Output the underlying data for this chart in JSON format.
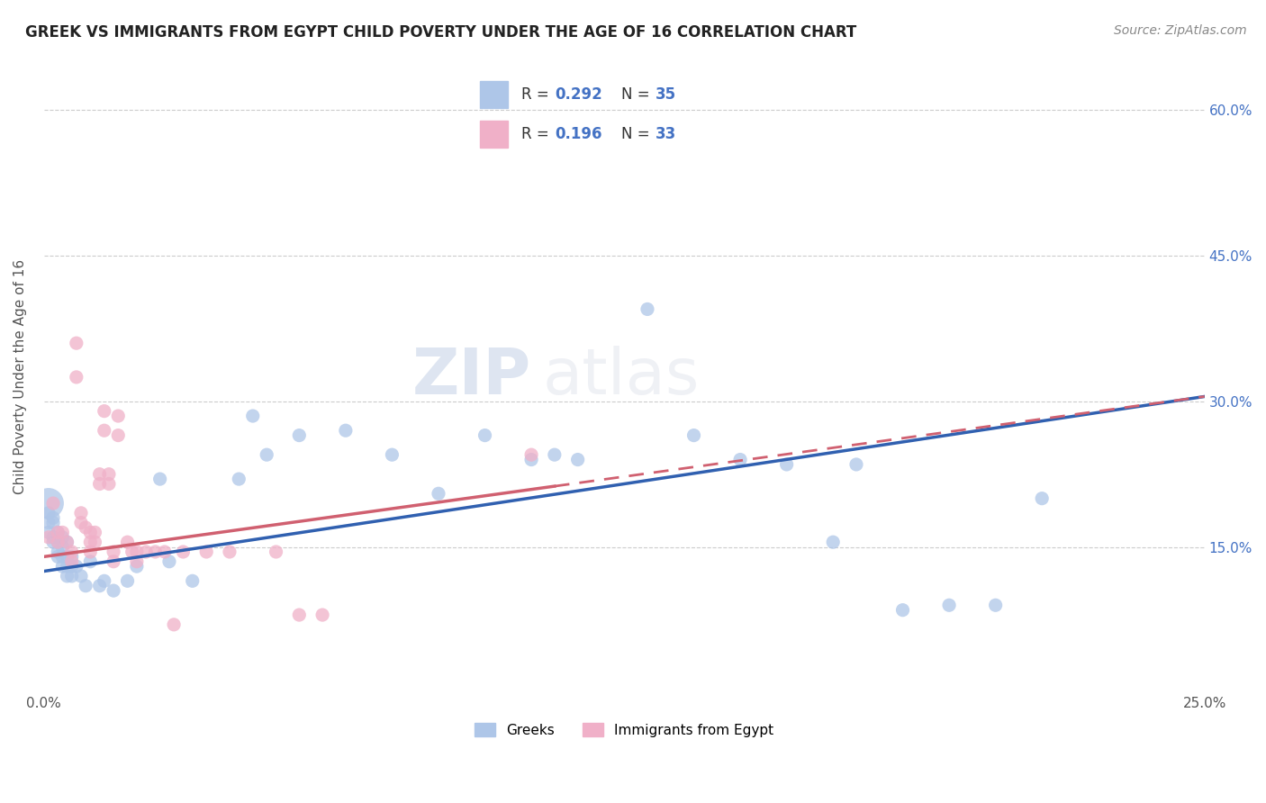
{
  "title": "GREEK VS IMMIGRANTS FROM EGYPT CHILD POVERTY UNDER THE AGE OF 16 CORRELATION CHART",
  "source": "Source: ZipAtlas.com",
  "ylabel": "Child Poverty Under the Age of 16",
  "xlim": [
    0.0,
    0.25
  ],
  "ylim": [
    0.0,
    0.65
  ],
  "x_ticks": [
    0.0,
    0.05,
    0.1,
    0.15,
    0.2,
    0.25
  ],
  "x_tick_labels": [
    "0.0%",
    "",
    "",
    "",
    "",
    "25.0%"
  ],
  "y_ticks": [
    0.0,
    0.15,
    0.3,
    0.45,
    0.6
  ],
  "y_tick_labels": [
    "",
    "15.0%",
    "30.0%",
    "45.0%",
    "60.0%"
  ],
  "legend_label1": "Greeks",
  "legend_label2": "Immigrants from Egypt",
  "greek_color": "#aec6e8",
  "egypt_color": "#f0b0c8",
  "greek_line_color": "#3060b0",
  "egypt_line_color": "#d06070",
  "background_color": "#ffffff",
  "watermark1": "ZIP",
  "watermark2": "atlas",
  "greek_points": [
    [
      0.001,
      0.195
    ],
    [
      0.001,
      0.185
    ],
    [
      0.001,
      0.175
    ],
    [
      0.001,
      0.165
    ],
    [
      0.002,
      0.18
    ],
    [
      0.002,
      0.175
    ],
    [
      0.002,
      0.16
    ],
    [
      0.002,
      0.155
    ],
    [
      0.003,
      0.165
    ],
    [
      0.003,
      0.155
    ],
    [
      0.003,
      0.145
    ],
    [
      0.003,
      0.14
    ],
    [
      0.004,
      0.16
    ],
    [
      0.004,
      0.15
    ],
    [
      0.004,
      0.14
    ],
    [
      0.004,
      0.13
    ],
    [
      0.005,
      0.155
    ],
    [
      0.005,
      0.14
    ],
    [
      0.005,
      0.13
    ],
    [
      0.005,
      0.12
    ],
    [
      0.006,
      0.14
    ],
    [
      0.006,
      0.13
    ],
    [
      0.006,
      0.12
    ],
    [
      0.007,
      0.13
    ],
    [
      0.008,
      0.12
    ],
    [
      0.009,
      0.11
    ],
    [
      0.01,
      0.135
    ],
    [
      0.012,
      0.11
    ],
    [
      0.013,
      0.115
    ],
    [
      0.015,
      0.105
    ],
    [
      0.018,
      0.115
    ],
    [
      0.02,
      0.13
    ],
    [
      0.025,
      0.22
    ],
    [
      0.027,
      0.135
    ],
    [
      0.032,
      0.115
    ],
    [
      0.042,
      0.22
    ],
    [
      0.045,
      0.285
    ],
    [
      0.048,
      0.245
    ],
    [
      0.055,
      0.265
    ],
    [
      0.065,
      0.27
    ],
    [
      0.075,
      0.245
    ],
    [
      0.085,
      0.205
    ],
    [
      0.095,
      0.265
    ],
    [
      0.105,
      0.24
    ],
    [
      0.11,
      0.245
    ],
    [
      0.115,
      0.24
    ],
    [
      0.13,
      0.395
    ],
    [
      0.14,
      0.265
    ],
    [
      0.15,
      0.24
    ],
    [
      0.16,
      0.235
    ],
    [
      0.17,
      0.155
    ],
    [
      0.175,
      0.235
    ],
    [
      0.185,
      0.085
    ],
    [
      0.195,
      0.09
    ],
    [
      0.205,
      0.09
    ],
    [
      0.215,
      0.2
    ]
  ],
  "greek_sizes": [
    600,
    120,
    120,
    120,
    120,
    120,
    120,
    120,
    120,
    120,
    120,
    120,
    120,
    120,
    120,
    120,
    120,
    120,
    120,
    120,
    120,
    120,
    120,
    120,
    120,
    120,
    120,
    120,
    120,
    120,
    120,
    120,
    120,
    120,
    120,
    120,
    120,
    120,
    120,
    120,
    120,
    120,
    120,
    120,
    120,
    120,
    120,
    120,
    120,
    120,
    120,
    120,
    120,
    120,
    120,
    120
  ],
  "egypt_points": [
    [
      0.001,
      0.16
    ],
    [
      0.002,
      0.195
    ],
    [
      0.003,
      0.165
    ],
    [
      0.003,
      0.155
    ],
    [
      0.004,
      0.165
    ],
    [
      0.005,
      0.155
    ],
    [
      0.006,
      0.145
    ],
    [
      0.006,
      0.135
    ],
    [
      0.007,
      0.36
    ],
    [
      0.007,
      0.325
    ],
    [
      0.008,
      0.185
    ],
    [
      0.008,
      0.175
    ],
    [
      0.009,
      0.17
    ],
    [
      0.01,
      0.165
    ],
    [
      0.01,
      0.155
    ],
    [
      0.01,
      0.145
    ],
    [
      0.011,
      0.165
    ],
    [
      0.011,
      0.155
    ],
    [
      0.012,
      0.225
    ],
    [
      0.012,
      0.215
    ],
    [
      0.013,
      0.29
    ],
    [
      0.013,
      0.27
    ],
    [
      0.014,
      0.225
    ],
    [
      0.014,
      0.215
    ],
    [
      0.015,
      0.145
    ],
    [
      0.015,
      0.135
    ],
    [
      0.016,
      0.285
    ],
    [
      0.016,
      0.265
    ],
    [
      0.018,
      0.155
    ],
    [
      0.019,
      0.145
    ],
    [
      0.02,
      0.145
    ],
    [
      0.02,
      0.135
    ],
    [
      0.022,
      0.145
    ],
    [
      0.024,
      0.145
    ],
    [
      0.026,
      0.145
    ],
    [
      0.028,
      0.07
    ],
    [
      0.03,
      0.145
    ],
    [
      0.035,
      0.145
    ],
    [
      0.04,
      0.145
    ],
    [
      0.05,
      0.145
    ],
    [
      0.055,
      0.08
    ],
    [
      0.06,
      0.08
    ],
    [
      0.105,
      0.245
    ]
  ],
  "egypt_sizes": [
    120,
    120,
    120,
    120,
    120,
    120,
    120,
    120,
    120,
    120,
    120,
    120,
    120,
    120,
    120,
    120,
    120,
    120,
    120,
    120,
    120,
    120,
    120,
    120,
    120,
    120,
    120,
    120,
    120,
    120,
    120,
    120,
    120,
    120,
    120,
    120,
    120,
    120,
    120,
    120,
    120,
    120,
    120
  ],
  "greek_trend": [
    0.0,
    0.25
  ],
  "greek_trend_y": [
    0.125,
    0.305
  ],
  "egypt_trend": [
    0.0,
    0.25
  ],
  "egypt_trend_y": [
    0.14,
    0.305
  ]
}
